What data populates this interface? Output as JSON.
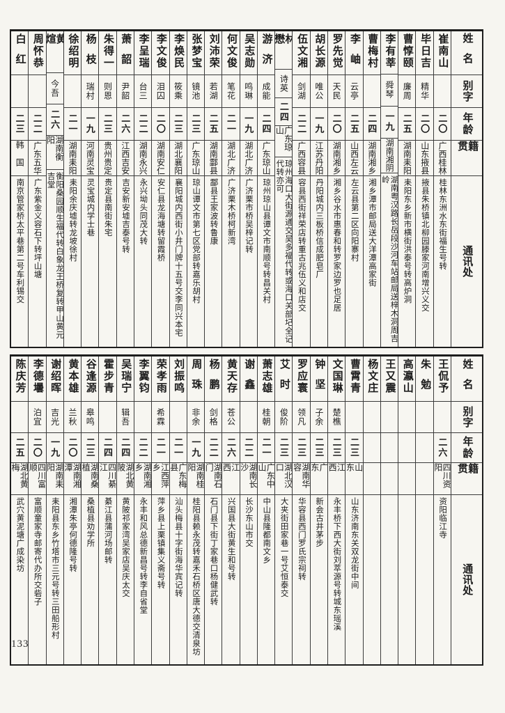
{
  "page": {
    "number": "133"
  },
  "headers": {
    "name": "姓名",
    "alias": "别字",
    "age": "年龄",
    "native": "籍贯",
    "address": "通讯处"
  },
  "sections": [
    {
      "people": [
        {
          "name": "崔南山",
          "alias": "",
          "age": "二〇",
          "native": "广西桂林",
          "address": "桂林东洲水东街福生号转"
        },
        {
          "name": "毕日吉",
          "alias": "精华",
          "age": "二〇",
          "native": "山东掖县",
          "address": "掖县朱桥镇北柳园滕家河南增兴义交"
        },
        {
          "name": "曹惇颐",
          "alias": "廉周",
          "age": "二五",
          "native": "湖南耒阳",
          "address": "耒阳东乡新市横街洪泰号转高炉洞"
        },
        {
          "name": "李有莘",
          "alias": "舜琴",
          "age": "一九",
          "native": "湖南湘阴",
          "address": "湖南粤汉路长岳段沙河车站邮局送梓木洞周吉岭"
        },
        {
          "name": "曹梅村",
          "alias": "",
          "age": "二四",
          "native": "湖南湘乡",
          "address": "湘乡潭市邮局送大洋潭高家街"
        },
        {
          "name": "李岫",
          "alias": "云亭",
          "age": "二五",
          "native": "山西左云",
          "address": "左云县第二区向阳寨村"
        },
        {
          "name": "罗先觉",
          "alias": "天民",
          "age": "二〇",
          "native": "湖南湘乡",
          "address": "湘乡谷水市惠春和转罗家边罗也足居"
        },
        {
          "name": "胡长源",
          "alias": "唯公",
          "age": "一九",
          "native": "江苏丹阳",
          "address": "丹阳城内三板桥信成肥皂厂"
        },
        {
          "name": "伍文湘",
          "alias": "剑湖",
          "age": "二二",
          "native": "广西容县",
          "address": "容县西街祥荣店转重古兆伍义和店交"
        },
        {
          "name": "林懋",
          "alias": "诗英",
          "age": "二四",
          "native": "广东琼山",
          "address": "琼州海口大街源通交吴多福代转或海口关部圮全记代转亦可"
        },
        {
          "name": "游济",
          "alias": "成能",
          "age": "二四",
          "native": "广东琼山",
          "address": "琼州琼山县谭文市南顺号转昌关村"
        },
        {
          "name": "吴志勋",
          "alias": "鸣琳",
          "age": "一九",
          "native": "湖北广济",
          "address": "广济栗市桥吴梓记转"
        },
        {
          "name": "何文俊",
          "alias": "笔花",
          "age": "二一",
          "native": "湖北广济",
          "address": "广济栗木桥柯新湾"
        },
        {
          "name": "刘沛荣",
          "alias": "若湖",
          "age": "二五",
          "native": "湖南酃县",
          "address": "酃县王家波转鲁康"
        },
        {
          "name": "张梦宝",
          "alias": "镜池",
          "age": "二三",
          "native": "广东琼山",
          "address": "琼山谭文市第七区党部转嘉乐胡村"
        },
        {
          "name": "李焕民",
          "alias": "筱乘",
          "age": "二三",
          "native": "湖北襄阳",
          "address": "襄阳城内西街小井门牌十五号交李同兴本宅"
        },
        {
          "name": "李文俊",
          "alias": "泪囚",
          "age": "二〇",
          "native": "湖南安仁",
          "address": "安仁县龙海塘转留霞桥"
        },
        {
          "name": "李呈瑞",
          "alias": "台三",
          "age": "二二",
          "native": "湖南永兴",
          "address": "永兴坳头同茂大转"
        },
        {
          "name": "萧韶",
          "alias": "尹韶",
          "age": "二六",
          "native": "江西吉安",
          "address": "吉安新安墟吉泰号转"
        },
        {
          "name": "朱得一",
          "alias": "则恩",
          "age": "二三",
          "native": "贵州贵定",
          "address": "贵定县南街朱宅"
        },
        {
          "name": "杨枝",
          "alias": "瑞村",
          "age": "一九",
          "native": "河南灵宝",
          "address": "灵宝城内学士巷"
        },
        {
          "name": "徐绍明",
          "alias": "",
          "age": "二一",
          "native": "湖南耒阳",
          "address": "耒阳余庆墟转龙坡徐村"
        },
        {
          "name": "黄煊",
          "alias": "今吾",
          "age": "二六",
          "native": "湖南衡阳",
          "address": "衡阳桑园顺生福代转白象龙王桥复转甲山黄元吉堂"
        },
        {
          "name": "周怀恭",
          "alias": "",
          "age": "二二",
          "native": "广东五华",
          "address": "广东紫金义容石下转坪山塘"
        },
        {
          "name": "白红",
          "alias": "",
          "age": "二三",
          "native": "韩国",
          "address": "南京管家桥太平巷第二号车利锡交"
        }
      ]
    },
    {
      "people": [
        {
          "name": "王侃予",
          "alias": "",
          "age": "二六",
          "native": "四川资阳",
          "address": "资阳临江寺"
        },
        {
          "name": "朱勉",
          "alias": "",
          "age": "",
          "native": "",
          "address": ""
        },
        {
          "name": "高瀛山",
          "alias": "",
          "age": "",
          "native": "",
          "address": ""
        },
        {
          "name": "王又震",
          "alias": "",
          "age": "",
          "native": "",
          "address": ""
        },
        {
          "name": "杨文庄",
          "alias": "",
          "age": "",
          "native": "",
          "address": ""
        },
        {
          "name": "曹霄青",
          "alias": "",
          "age": "二三",
          "native": "山东",
          "address": "山东济南东关双龙街中间"
        },
        {
          "name": "文国琳",
          "alias": "楚樵",
          "age": "二三",
          "native": "江西",
          "address": "永丰桥下西大街刘萃源号转城东瑶溪"
        },
        {
          "name": "钟坚",
          "alias": "子余",
          "age": "二三",
          "native": "广东",
          "address": "新会古井茅步"
        },
        {
          "name": "罗应寰",
          "alias": "领凡",
          "age": "二三",
          "native": "湖南华容",
          "address": "华容县西门罗氏宗祠转"
        },
        {
          "name": "艾时",
          "alias": "俊阶",
          "age": "二三",
          "native": "湖北汉口",
          "address": "大夹街田家巷一号艾恒泰交"
        },
        {
          "name": "萧志雄",
          "alias": "桂朝",
          "age": "二一",
          "native": "广东中山",
          "address": "中山县隆都南文乡"
        },
        {
          "name": "谢鑫",
          "alias": "",
          "age": "二二",
          "native": "湖南长沙",
          "address": "长沙东山市交"
        },
        {
          "name": "黄天存",
          "alias": "苍公",
          "age": "二六",
          "native": "江西",
          "address": "兴国县大街黄生和号转"
        },
        {
          "name": "杨鹏",
          "alias": "剑格",
          "age": "二二",
          "native": "湖南石门",
          "address": "石门县下街丁家巷口杨健武转"
        },
        {
          "name": "周珠",
          "alias": "非余",
          "age": "一九",
          "native": "湖南桂阳",
          "address": "桂阳县赖永茂转嘉禾石桥区唐大德交清泉坊"
        },
        {
          "name": "刘振鸣",
          "alias": "",
          "age": "二一",
          "native": "广东梅县",
          "address": "汕头梅县十字街海华宾记转"
        },
        {
          "name": "荣孝雨",
          "alias": "希霖",
          "age": "二一",
          "native": "江西萍乡",
          "address": "萍乡县上栗镇集义斋号转"
        },
        {
          "name": "李翼钧",
          "alias": "",
          "age": "二二",
          "native": "湖南湘乡",
          "address": "永丰和风总德新昌号转李自省堂"
        },
        {
          "name": "吴瑞宁",
          "alias": "辑吾",
          "age": "二四",
          "native": "湖北黄陂",
          "address": "黄陂祁家湾吴家店吴庆太交"
        },
        {
          "name": "霍步青",
          "alias": "",
          "age": "二四",
          "native": "四川綦江",
          "address": "綦江县蒲河场邮转"
        },
        {
          "name": "谷逢源",
          "alias": "皋鸣",
          "age": "二三",
          "native": "湖南桑植",
          "address": "桑植县劝学所"
        },
        {
          "name": "黄本雄",
          "alias": "兰秋",
          "age": "二〇",
          "native": "湖南湘潭",
          "address": "湘潭朱亭何德隆号转"
        },
        {
          "name": "谢绍晖",
          "alias": "吉光",
          "age": "一九",
          "native": "湖南耒阳",
          "address": "耒阳县东乡竹塔市三元号转三田船形村"
        },
        {
          "name": "李德壜",
          "alias": "泊宜",
          "age": "二〇",
          "native": "四川富顺",
          "address": "富顺童家寺邮寄代办所交砦子"
        },
        {
          "name": "陈庆芳",
          "alias": "",
          "age": "二五",
          "native": "湖北黄梅",
          "address": "武穴黄泥塘广成染坊"
        }
      ]
    }
  ]
}
